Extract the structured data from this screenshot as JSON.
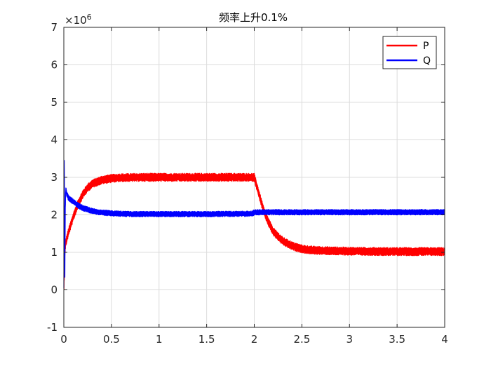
{
  "chart_data": {
    "type": "line",
    "title": "频率上升0.1%",
    "xlabel": "",
    "ylabel": "",
    "xlim": [
      0,
      4
    ],
    "ylim": [
      -1,
      7
    ],
    "y_multiplier_label": "×10",
    "y_multiplier_exponent": "6",
    "x_ticks": [
      0,
      0.5,
      1,
      1.5,
      2,
      2.5,
      3,
      3.5,
      4
    ],
    "x_tick_labels": [
      "0",
      "0.5",
      "1",
      "1.5",
      "2",
      "2.5",
      "3",
      "3.5",
      "4"
    ],
    "y_ticks": [
      -1,
      0,
      1,
      2,
      3,
      4,
      5,
      6,
      7
    ],
    "y_tick_labels": [
      "-1",
      "0",
      "1",
      "2",
      "3",
      "4",
      "5",
      "6",
      "7"
    ],
    "grid": true,
    "legend_position": "top-right",
    "series": [
      {
        "name": "P",
        "color": "#ff0000",
        "x": [
          0,
          0.005,
          0.01,
          0.02,
          0.05,
          0.1,
          0.15,
          0.2,
          0.25,
          0.3,
          0.4,
          0.5,
          0.6,
          0.8,
          1.0,
          1.5,
          1.98,
          2.0,
          2.05,
          2.1,
          2.15,
          2.2,
          2.3,
          2.4,
          2.5,
          2.6,
          2.8,
          3.0,
          3.5,
          4.0
        ],
        "y": [
          -0.05,
          0.4,
          1.0,
          1.25,
          1.55,
          1.95,
          2.3,
          2.55,
          2.72,
          2.83,
          2.93,
          2.97,
          2.99,
          3.0,
          3.0,
          3.0,
          3.0,
          3.0,
          2.55,
          2.1,
          1.8,
          1.55,
          1.3,
          1.17,
          1.09,
          1.06,
          1.04,
          1.03,
          1.02,
          1.02
        ],
        "band": 0.22
      },
      {
        "name": "Q",
        "color": "#0000ff",
        "x": [
          0,
          0.005,
          0.01,
          0.015,
          0.02,
          0.03,
          0.05,
          0.1,
          0.15,
          0.2,
          0.3,
          0.4,
          0.5,
          0.7,
          1.0,
          1.5,
          1.98,
          2.0,
          2.5,
          3.0,
          3.5,
          4.0
        ],
        "y": [
          0.0,
          3.8,
          0.1,
          2.1,
          2.7,
          2.55,
          2.45,
          2.35,
          2.25,
          2.18,
          2.1,
          2.06,
          2.04,
          2.02,
          2.02,
          2.02,
          2.03,
          2.07,
          2.07,
          2.07,
          2.07,
          2.07
        ],
        "band": 0.15
      }
    ]
  }
}
